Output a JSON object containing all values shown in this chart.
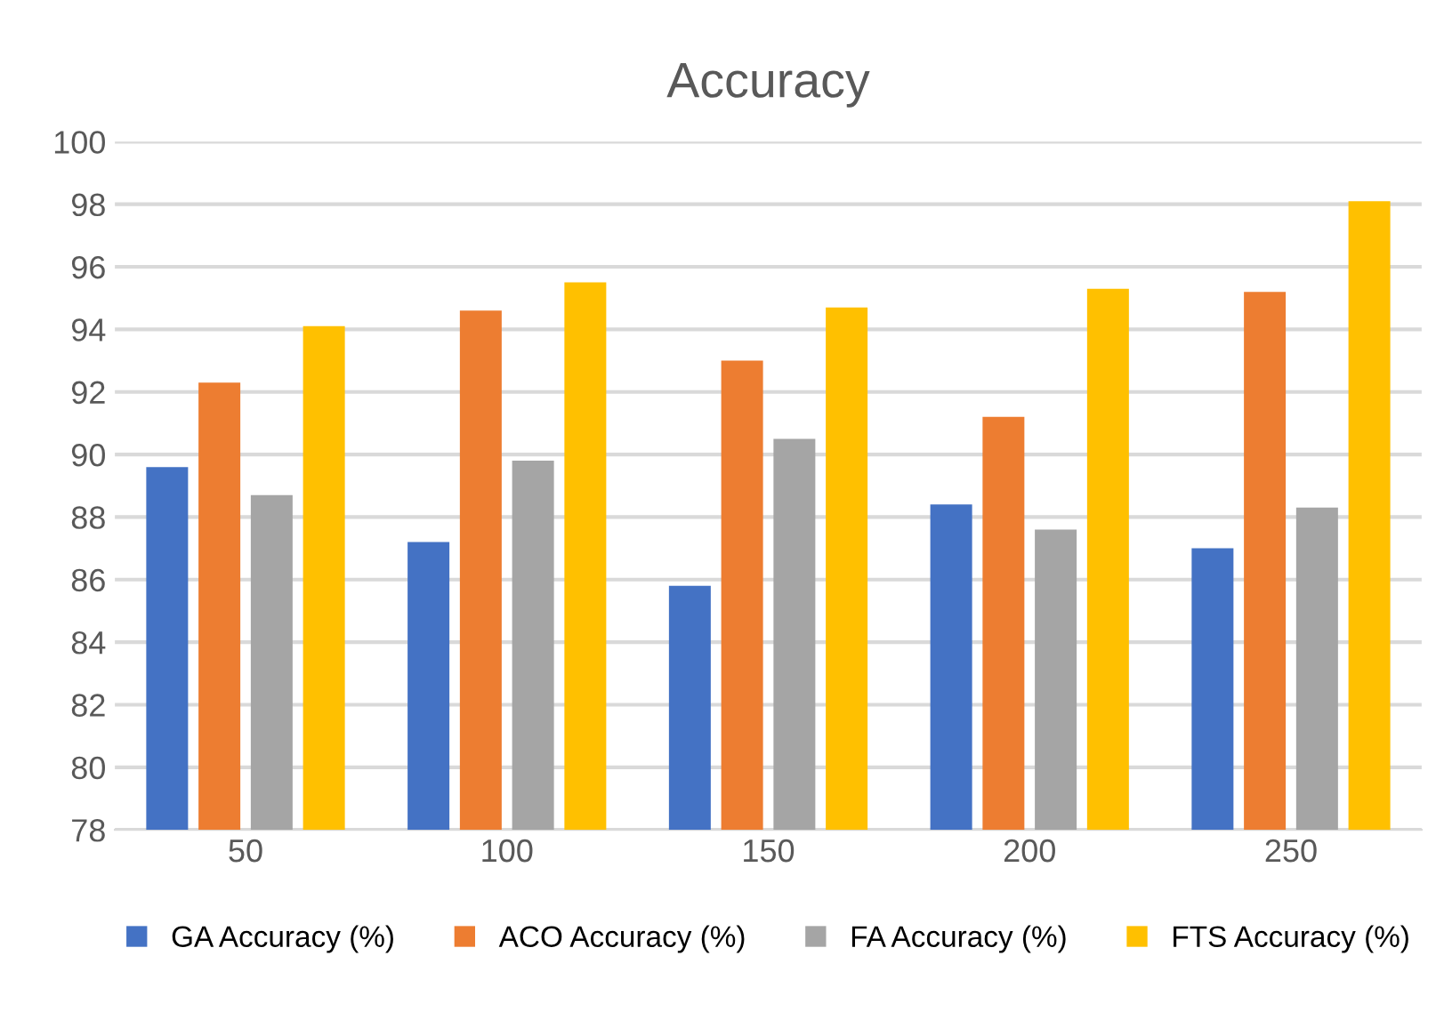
{
  "chart_data": {
    "type": "bar",
    "title": "Accuracy",
    "categories": [
      "50",
      "100",
      "150",
      "200",
      "250"
    ],
    "series": [
      {
        "name": "GA Accuracy (%)",
        "color": "#4472c4",
        "values": [
          89.6,
          87.2,
          85.8,
          88.4,
          87.0
        ]
      },
      {
        "name": "ACO Accuracy (%)",
        "color": "#ed7d31",
        "values": [
          92.3,
          94.6,
          93.0,
          91.2,
          95.2
        ]
      },
      {
        "name": "FA Accuracy (%)",
        "color": "#a5a5a5",
        "values": [
          88.7,
          89.8,
          90.5,
          87.6,
          88.3
        ]
      },
      {
        "name": "FTS Accuracy (%)",
        "color": "#ffc000",
        "values": [
          94.1,
          95.5,
          94.7,
          95.3,
          98.1
        ]
      }
    ],
    "ylim": [
      78,
      100
    ],
    "yticks": [
      78,
      80,
      82,
      84,
      86,
      88,
      90,
      92,
      94,
      96,
      98,
      100
    ],
    "grid": "y",
    "legend": "bottom"
  }
}
